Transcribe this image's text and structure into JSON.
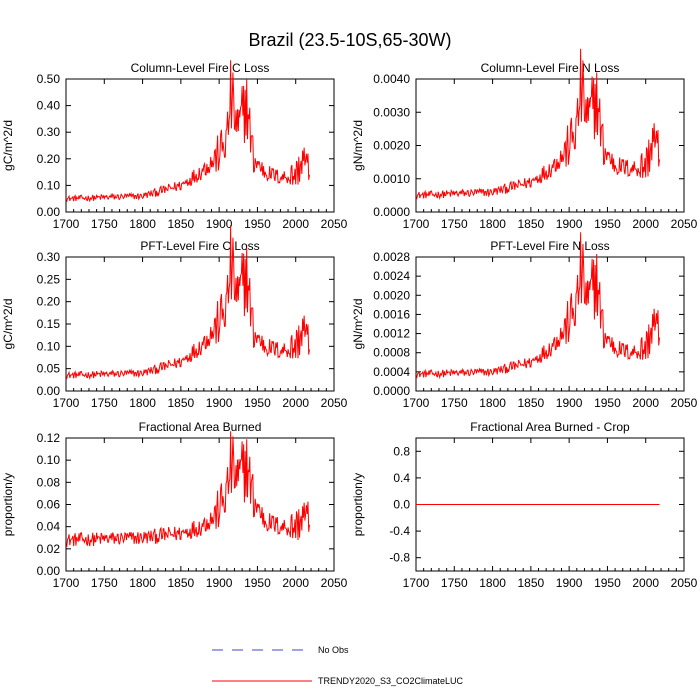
{
  "figure_title": "Brazil (23.5-10S,65-30W)",
  "colors": {
    "model": "#ff0000",
    "obs": "#4444cc",
    "axes": "#000000"
  },
  "legend": [
    {
      "label": "No Obs",
      "style": "dashed",
      "color": "#4444cc"
    },
    {
      "label": "TRENDY2020_S3_CO2ClimateLUC",
      "style": "solid",
      "color": "#ff0000"
    }
  ],
  "chart_data": [
    {
      "type": "line",
      "title": "Column-Level Fire C Loss",
      "ylabel": "gC/m^2/d",
      "xlim": [
        1700,
        2050
      ],
      "ylim": [
        0,
        0.5
      ],
      "xticks": [
        1700,
        1750,
        1800,
        1850,
        1900,
        1950,
        2000,
        2050
      ],
      "yticks": [
        "0.00",
        "0.10",
        "0.20",
        "0.30",
        "0.40",
        "0.50"
      ],
      "scale": 0.42,
      "series": [
        {
          "name": "TRENDY2020_S3_CO2ClimateLUC",
          "x_range": [
            1700,
            2018
          ],
          "envelope": {
            "x": [
              1700,
              1800,
              1850,
              1875,
              1895,
              1910,
              1915,
              1925,
              1935,
              1945,
              1960,
              1980,
              2000,
              2010,
              2018
            ],
            "y": [
              0.05,
              0.06,
              0.1,
              0.15,
              0.2,
              0.27,
              0.43,
              0.3,
              0.42,
              0.2,
              0.15,
              0.13,
              0.14,
              0.2,
              0.15
            ]
          }
        }
      ]
    },
    {
      "type": "line",
      "title": "Column-Level Fire N Loss",
      "ylabel": "gN/m^2/d",
      "xlim": [
        1700,
        2050
      ],
      "ylim": [
        0,
        0.004
      ],
      "xticks": [
        1700,
        1750,
        1800,
        1850,
        1900,
        1950,
        2000,
        2050
      ],
      "yticks": [
        "0.0000",
        "0.0010",
        "0.0020",
        "0.0030",
        "0.0040"
      ],
      "scale": 0.0037,
      "series": [
        {
          "name": "TRENDY2020_S3_CO2ClimateLUC",
          "x_range": [
            1700,
            2018
          ],
          "envelope": {
            "x": [
              1700,
              1800,
              1850,
              1875,
              1895,
              1910,
              1915,
              1925,
              1935,
              1945,
              1960,
              1980,
              2000,
              2010,
              2018
            ],
            "y": [
              0.0005,
              0.0006,
              0.0009,
              0.0013,
              0.0018,
              0.0025,
              0.0037,
              0.0027,
              0.0035,
              0.0019,
              0.0014,
              0.0013,
              0.0014,
              0.0022,
              0.0017
            ]
          }
        }
      ]
    },
    {
      "type": "line",
      "title": "PFT-Level Fire C Loss",
      "ylabel": "gC/m^2/d",
      "xlim": [
        1700,
        2050
      ],
      "ylim": [
        0,
        0.3
      ],
      "xticks": [
        1700,
        1750,
        1800,
        1850,
        1900,
        1950,
        2000,
        2050
      ],
      "yticks": [
        "0.00",
        "0.05",
        "0.10",
        "0.15",
        "0.20",
        "0.25",
        "0.30"
      ],
      "scale": 0.28,
      "series": [
        {
          "name": "TRENDY2020_S3_CO2ClimateLUC",
          "x_range": [
            1700,
            2018
          ],
          "envelope": {
            "x": [
              1700,
              1800,
              1850,
              1875,
              1895,
              1910,
              1915,
              1925,
              1935,
              1945,
              1960,
              1980,
              2000,
              2010,
              2018
            ],
            "y": [
              0.035,
              0.04,
              0.065,
              0.1,
              0.14,
              0.19,
              0.28,
              0.2,
              0.27,
              0.13,
              0.1,
              0.09,
              0.1,
              0.14,
              0.1
            ]
          }
        }
      ]
    },
    {
      "type": "line",
      "title": "PFT-Level Fire N Loss",
      "ylabel": "gN/m^2/d",
      "xlim": [
        1700,
        2050
      ],
      "ylim": [
        0,
        0.0028
      ],
      "xticks": [
        1700,
        1750,
        1800,
        1850,
        1900,
        1950,
        2000,
        2050
      ],
      "yticks": [
        "0.0000",
        "0.0004",
        "0.0008",
        "0.0012",
        "0.0016",
        "0.0020",
        "0.0024",
        "0.0028"
      ],
      "scale": 0.0025,
      "series": [
        {
          "name": "TRENDY2020_S3_CO2ClimateLUC",
          "x_range": [
            1700,
            2018
          ],
          "envelope": {
            "x": [
              1700,
              1800,
              1850,
              1875,
              1895,
              1910,
              1915,
              1925,
              1935,
              1945,
              1960,
              1980,
              2000,
              2010,
              2018
            ],
            "y": [
              0.00035,
              0.0004,
              0.0006,
              0.0009,
              0.0013,
              0.0018,
              0.0025,
              0.0018,
              0.0024,
              0.0012,
              0.0009,
              0.0008,
              0.0009,
              0.0014,
              0.0012
            ]
          }
        }
      ]
    },
    {
      "type": "line",
      "title": "Fractional Area Burned",
      "ylabel": "proportion/y",
      "xlim": [
        1700,
        2050
      ],
      "ylim": [
        0,
        0.12
      ],
      "xticks": [
        1700,
        1750,
        1800,
        1850,
        1900,
        1950,
        2000,
        2050
      ],
      "yticks": [
        "0.00",
        "0.02",
        "0.04",
        "0.06",
        "0.08",
        "0.10",
        "0.12"
      ],
      "scale": 0.1,
      "series": [
        {
          "name": "TRENDY2020_S3_CO2ClimateLUC",
          "x_range": [
            1700,
            2018
          ],
          "envelope": {
            "x": [
              1700,
              1800,
              1850,
              1875,
              1895,
              1910,
              1915,
              1925,
              1935,
              1945,
              1960,
              1980,
              2000,
              2010,
              2018
            ],
            "y": [
              0.028,
              0.03,
              0.034,
              0.04,
              0.05,
              0.07,
              0.095,
              0.08,
              0.098,
              0.065,
              0.045,
              0.04,
              0.04,
              0.05,
              0.045
            ]
          }
        }
      ]
    },
    {
      "type": "line",
      "title": "Fractional Area Burned - Crop",
      "ylabel": "proportion/y",
      "xlim": [
        1700,
        2050
      ],
      "ylim": [
        -1,
        1
      ],
      "xticks": [
        1700,
        1750,
        1800,
        1850,
        1900,
        1950,
        2000,
        2050
      ],
      "yticks": [
        "-0.8",
        "-0.4",
        "0.0",
        "0.4",
        "0.8"
      ],
      "scale": 1,
      "series": [
        {
          "name": "TRENDY2020_S3_CO2ClimateLUC",
          "x_range": [
            1700,
            2018
          ],
          "envelope": {
            "x": [
              1700,
              2018
            ],
            "y": [
              0,
              0
            ]
          }
        }
      ]
    }
  ]
}
